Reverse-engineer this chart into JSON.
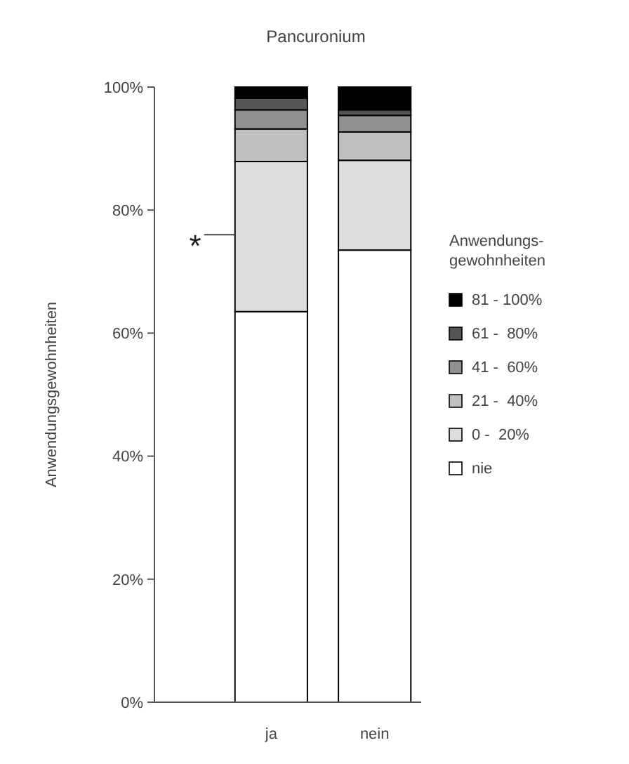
{
  "chart_data": {
    "type": "bar",
    "stacked": true,
    "title": "Pancuronium",
    "ylabel": "Anwendungsgewohnheiten",
    "legend_title": "Anwendungs-\ngewohnheiten",
    "legend": "right",
    "categories": [
      "ja",
      "nein"
    ],
    "series": [
      {
        "name": "nie",
        "color": "#ffffff",
        "values": [
          63.5,
          73.5
        ]
      },
      {
        "name": "0 -  20%",
        "color": "#dcdcdc",
        "values": [
          24.4,
          14.6
        ]
      },
      {
        "name": "21 -  40%",
        "color": "#c0c0c0",
        "values": [
          5.3,
          4.6
        ]
      },
      {
        "name": "41 -  60%",
        "color": "#909090",
        "values": [
          3.1,
          2.7
        ]
      },
      {
        "name": "61 -  80%",
        "color": "#555555",
        "values": [
          1.9,
          0.9
        ]
      },
      {
        "name": "81 - 100%",
        "color": "#000000",
        "values": [
          1.8,
          3.7
        ]
      }
    ],
    "ylim": [
      0,
      100
    ],
    "yticks": [
      {
        "value": 0,
        "label": "0%"
      },
      {
        "value": 20,
        "label": "20%"
      },
      {
        "value": 40,
        "label": "40%"
      },
      {
        "value": 60,
        "label": "60%"
      },
      {
        "value": 80,
        "label": "80%"
      },
      {
        "value": 100,
        "label": "100%"
      }
    ],
    "annotations": [
      "*"
    ]
  }
}
